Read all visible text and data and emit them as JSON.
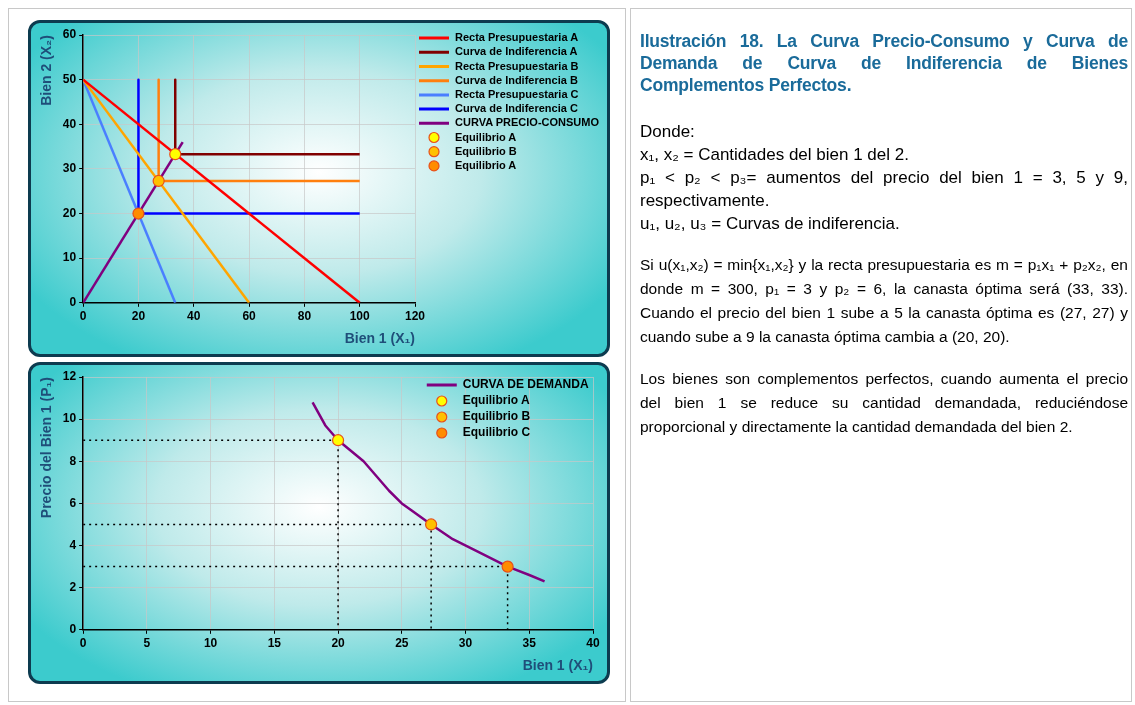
{
  "chart_data": [
    {
      "type": "line",
      "xlabel": "Bien 1 (X₁)",
      "ylabel": "Bien 2 (X₂)",
      "xlim": [
        0,
        120
      ],
      "xticks": [
        0,
        20,
        40,
        60,
        80,
        100,
        120
      ],
      "ylim": [
        0,
        60
      ],
      "yticks": [
        0,
        10,
        20,
        30,
        40,
        50,
        60
      ],
      "grid": true,
      "legend": "right",
      "marker": "none",
      "line_style": "solid",
      "series": [
        {
          "name": "Recta Presupuestaria A",
          "color": "#ff0000",
          "x": [
            0,
            100
          ],
          "values": [
            50,
            0
          ]
        },
        {
          "name": "Curva de Indiferencia A",
          "color": "#800000",
          "x": [
            33.3,
            33.3,
            100
          ],
          "values": [
            50,
            33.3,
            33.3
          ]
        },
        {
          "name": "Recta Presupuestaria B",
          "color": "#ffa500",
          "x": [
            0,
            60
          ],
          "values": [
            50,
            0
          ]
        },
        {
          "name": "Curva de Indiferencia B",
          "color": "#ff7f0e",
          "x": [
            27.3,
            27.3,
            100
          ],
          "values": [
            50,
            27.3,
            27.3
          ]
        },
        {
          "name": "Recta Presupuestaria C",
          "color": "#4a7fff",
          "x": [
            0,
            33.3
          ],
          "values": [
            50,
            0
          ]
        },
        {
          "name": "Curva de Indiferencia C",
          "color": "#0000ff",
          "x": [
            20,
            20,
            100
          ],
          "values": [
            50,
            20,
            20
          ]
        },
        {
          "name": "CURVA PRECIO-CONSUMO",
          "color": "#800080",
          "x": [
            0,
            36
          ],
          "values": [
            0,
            36
          ]
        },
        {
          "name": "Equilibrio A",
          "type": "scatter",
          "marker": "circle",
          "color": "#ffff00",
          "x": [
            33.3
          ],
          "values": [
            33.3
          ]
        },
        {
          "name": "Equilibrio B",
          "type": "scatter",
          "marker": "circle",
          "color": "#ffc000",
          "x": [
            27.3
          ],
          "values": [
            27.3
          ]
        },
        {
          "name": "Equilibrio A",
          "type": "scatter",
          "marker": "circle",
          "color": "#ff8c00",
          "x": [
            20
          ],
          "values": [
            20
          ]
        }
      ]
    },
    {
      "type": "line",
      "xlabel": "Bien 1 (X₁)",
      "ylabel": "Precio del Bien 1 (P₁)",
      "xlim": [
        0,
        40
      ],
      "xticks": [
        0,
        5,
        10,
        15,
        20,
        25,
        30,
        35,
        40
      ],
      "ylim": [
        0,
        12
      ],
      "yticks": [
        0,
        2,
        4,
        6,
        8,
        10,
        12
      ],
      "grid": true,
      "legend": "top right",
      "marker": "none",
      "line_style": "solid",
      "series": [
        {
          "color": "#000000",
          "line_style": "dotted",
          "x": [
            0,
            20,
            20
          ],
          "values": [
            9,
            9,
            0
          ]
        },
        {
          "color": "#000000",
          "line_style": "dotted",
          "x": [
            0,
            27.3,
            27.3
          ],
          "values": [
            5,
            5,
            0
          ]
        },
        {
          "color": "#000000",
          "line_style": "dotted",
          "x": [
            0,
            33.3,
            33.3
          ],
          "values": [
            3,
            3,
            0
          ]
        },
        {
          "name": "CURVA DE DEMANDA",
          "color": "#800080",
          "x": [
            18,
            19,
            20,
            22,
            24,
            25,
            27.3,
            29,
            31,
            33.3,
            35,
            36.2
          ],
          "values": [
            10.8,
            9.7,
            9,
            8,
            6.6,
            6,
            5,
            4.3,
            3.7,
            3,
            2.6,
            2.3
          ]
        },
        {
          "name": "Equilibrio A",
          "type": "scatter",
          "marker": "circle",
          "color": "#ffff00",
          "x": [
            20
          ],
          "values": [
            9
          ]
        },
        {
          "name": "Equilibrio B",
          "type": "scatter",
          "marker": "circle",
          "color": "#ffc000",
          "x": [
            27.3
          ],
          "values": [
            5
          ]
        },
        {
          "name": "Equilibrio C",
          "type": "scatter",
          "marker": "circle",
          "color": "#ff8c00",
          "x": [
            33.3
          ],
          "values": [
            3
          ]
        }
      ]
    },
    {
      "type": "other",
      "title": "Ilustración 18. La Curva Precio-Consumo y Curva de Demanda de Curva de Indiferencia de Bienes Complementos Perfectos.",
      "annotations": [
        "Donde:",
        "x₁, x₂ = Cantidades del bien 1 del 2.",
        "p₁ < p₂ < p₃= aumentos del precio del bien 1 = 3, 5 y 9, respectivamente.",
        "u₁, u₂, u₃ = Curvas de indiferencia.",
        "Si u(x₁,x₂) = min{x₁,x₂} y la recta presupuestaria es m = p₁x₁ + p₂x₂, en donde m = 300, p₁ = 3 y p₂ = 6, la canasta óptima será (33, 33). Cuando el precio del bien 1 sube a 5 la canasta óptima es (27, 27) y cuando sube a 9 la canasta óptima cambia a (20, 20).",
        "Los bienes son complementos perfectos, cuando aumenta el precio del bien 1 se reduce su cantidad demandada, reduciéndose proporcional y directamente la cantidad demandada del bien 2."
      ]
    }
  ]
}
